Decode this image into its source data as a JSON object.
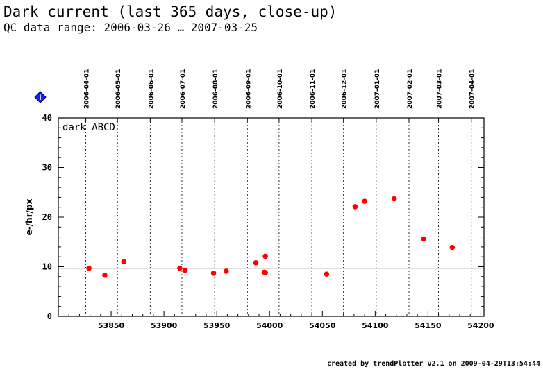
{
  "header": {
    "title": "Dark current (last 365 days, close-up)",
    "subtitle": "QC data range: 2006-03-26 … 2007-03-25"
  },
  "footer": {
    "text": "created by trendPlotter v2.1 on 2009-04-29T13:54:44"
  },
  "info_icon": {
    "icon": "info-diamond-icon",
    "label": "i",
    "color": "#1a1aff"
  },
  "chart_data": {
    "type": "scatter",
    "title": "Dark current (last 365 days, close-up)",
    "panel_label": "dark_ABCD",
    "xlabel": "",
    "ylabel": "e-/hr/px",
    "xlim": [
      53800,
      54203
    ],
    "ylim": [
      0,
      40
    ],
    "x_ticks": [
      53850,
      53900,
      53950,
      54000,
      54050,
      54100,
      54150,
      54200
    ],
    "y_ticks": [
      0,
      10,
      20,
      30,
      40
    ],
    "reference_line": 9.7,
    "grid": "vertical dotted lines at month starts",
    "top_axis": {
      "labels": [
        "2006-04-01",
        "2006-05-01",
        "2006-06-01",
        "2006-07-01",
        "2006-08-01",
        "2006-09-01",
        "2006-10-01",
        "2006-11-01",
        "2006-12-01",
        "2007-01-01",
        "2007-02-01",
        "2007-03-01",
        "2007-04-01"
      ],
      "mjd": [
        53826,
        53856,
        53887,
        53917,
        53948,
        53979,
        54009,
        54040,
        54070,
        54101,
        54132,
        54160,
        54191
      ]
    },
    "marker_color": "#ff0000",
    "series": [
      {
        "x": [
          53829,
          53844,
          53862,
          53915,
          53920,
          53947,
          53959,
          53987,
          53995,
          53996,
          53996,
          54054,
          54081,
          54090,
          54118,
          54146,
          54173
        ],
        "y": [
          9.7,
          8.3,
          11.0,
          9.7,
          9.3,
          8.7,
          9.1,
          10.8,
          8.9,
          8.8,
          12.1,
          8.5,
          22.1,
          23.2,
          23.7,
          15.6,
          13.9
        ]
      }
    ]
  }
}
